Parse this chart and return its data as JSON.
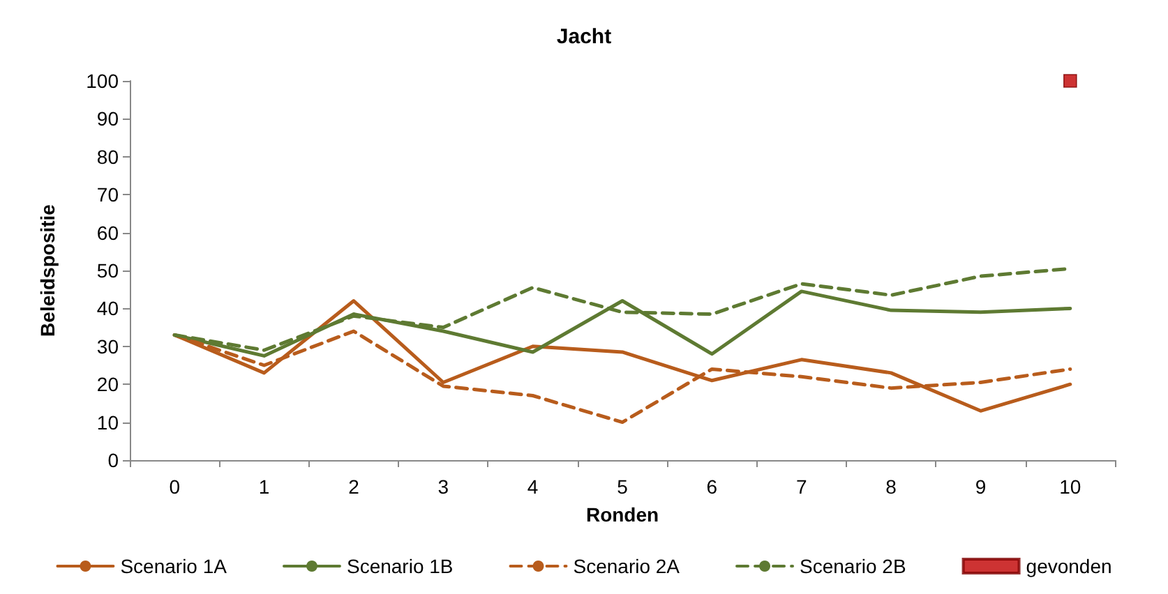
{
  "chart_data": {
    "type": "line",
    "title": "Jacht",
    "xlabel": "Ronden",
    "ylabel": "Beleidspositie",
    "categories": [
      "0",
      "1",
      "2",
      "3",
      "4",
      "5",
      "6",
      "7",
      "8",
      "9",
      "10"
    ],
    "series": [
      {
        "name": "Scenario 1A",
        "color": "#b85c1c",
        "line_style": "solid",
        "marker": "none",
        "values": [
          33,
          23,
          42,
          20.5,
          30,
          28.5,
          21,
          26.5,
          23,
          13,
          20
        ]
      },
      {
        "name": "Scenario 1B",
        "color": "#5e7a32",
        "line_style": "solid",
        "marker": "none",
        "values": [
          33,
          27.5,
          38.5,
          34,
          28.5,
          42,
          28,
          44.5,
          39.5,
          39,
          40
        ]
      },
      {
        "name": "Scenario 2A",
        "color": "#b85c1c",
        "line_style": "dashed",
        "marker": "none",
        "values": [
          33,
          25,
          34,
          19.5,
          17,
          10,
          24,
          22,
          19,
          20.5,
          24
        ]
      },
      {
        "name": "Scenario 2B",
        "color": "#5e7a32",
        "line_style": "dashed",
        "marker": "none",
        "values": [
          33,
          29,
          38,
          35,
          45.5,
          39,
          38.5,
          46.5,
          43.5,
          48.5,
          50.5
        ]
      },
      {
        "name": "gevonden",
        "type": "scatter",
        "color": "#c00000",
        "marker": "square",
        "x": [
          "10"
        ],
        "values": [
          100
        ]
      }
    ],
    "ylim": [
      0,
      100
    ],
    "yticks": [
      0,
      10,
      20,
      30,
      40,
      50,
      60,
      70,
      80,
      90,
      100
    ],
    "grid": false,
    "legend": "bottom"
  }
}
